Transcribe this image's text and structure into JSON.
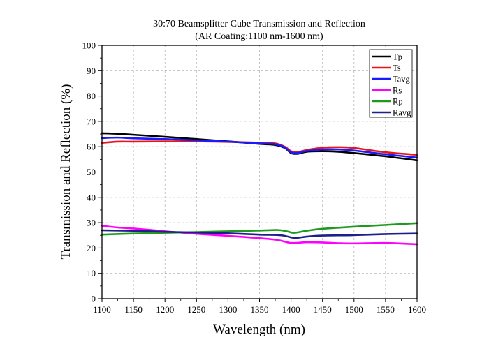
{
  "chart_data": {
    "type": "line",
    "title": "30:70 Beamsplitter Cube Transmission and Reflection",
    "subtitle": "(AR Coating:1100 nm-1600 nm)",
    "xlabel": "Wavelength (nm)",
    "ylabel": "Transmission and Reflection (%)",
    "xlim": [
      1100,
      1600
    ],
    "ylim": [
      0,
      100
    ],
    "xticks": [
      1100,
      1150,
      1200,
      1250,
      1300,
      1350,
      1400,
      1450,
      1500,
      1550,
      1600
    ],
    "yticks": [
      0,
      10,
      20,
      30,
      40,
      50,
      60,
      70,
      80,
      90,
      100
    ],
    "grid": true,
    "legend_position": "top-right",
    "series": [
      {
        "name": "Tp",
        "color": "#000000",
        "x": [
          1100,
          1125,
          1150,
          1200,
          1250,
          1300,
          1350,
          1375,
          1390,
          1400,
          1410,
          1425,
          1450,
          1475,
          1500,
          1550,
          1600
        ],
        "y": [
          65.3,
          65.1,
          64.7,
          63.9,
          63.0,
          62.1,
          61.1,
          60.7,
          59.5,
          57.5,
          57.2,
          58.0,
          58.2,
          58.0,
          57.5,
          56.2,
          54.6
        ]
      },
      {
        "name": "Ts",
        "color": "#e8161b",
        "x": [
          1100,
          1125,
          1150,
          1200,
          1250,
          1300,
          1350,
          1375,
          1390,
          1400,
          1410,
          1425,
          1450,
          1475,
          1500,
          1550,
          1600
        ],
        "y": [
          61.5,
          62.0,
          62.0,
          62.1,
          62.1,
          61.9,
          61.6,
          61.3,
          60.0,
          58.2,
          57.8,
          58.7,
          59.6,
          59.8,
          59.5,
          57.8,
          56.8
        ]
      },
      {
        "name": "Tavg",
        "color": "#1a1aff",
        "x": [
          1100,
          1125,
          1150,
          1200,
          1250,
          1300,
          1350,
          1375,
          1390,
          1400,
          1410,
          1425,
          1450,
          1475,
          1500,
          1550,
          1600
        ],
        "y": [
          63.4,
          63.6,
          63.3,
          63.0,
          62.5,
          62.0,
          61.3,
          61.0,
          59.7,
          57.8,
          57.5,
          58.3,
          58.9,
          58.9,
          58.5,
          57.0,
          55.7
        ]
      },
      {
        "name": "Rs",
        "color": "#ff00ff",
        "x": [
          1100,
          1125,
          1150,
          1175,
          1200,
          1250,
          1300,
          1350,
          1380,
          1400,
          1425,
          1450,
          1475,
          1500,
          1550,
          1600
        ],
        "y": [
          28.8,
          28.1,
          27.7,
          27.2,
          26.6,
          25.6,
          24.8,
          23.9,
          23.1,
          22.0,
          22.3,
          22.2,
          21.9,
          21.8,
          22.0,
          21.5
        ]
      },
      {
        "name": "Rp",
        "color": "#1e9a1e",
        "x": [
          1100,
          1150,
          1200,
          1250,
          1300,
          1350,
          1380,
          1395,
          1405,
          1425,
          1450,
          1500,
          1550,
          1600
        ],
        "y": [
          25.3,
          25.7,
          26.0,
          26.3,
          26.6,
          26.9,
          27.1,
          26.5,
          26.0,
          26.8,
          27.6,
          28.4,
          29.1,
          29.8
        ]
      },
      {
        "name": "Ravg",
        "color": "#1f1f8c",
        "x": [
          1100,
          1150,
          1200,
          1250,
          1300,
          1350,
          1385,
          1405,
          1425,
          1450,
          1500,
          1550,
          1600
        ],
        "y": [
          27.0,
          26.8,
          26.4,
          26.1,
          25.8,
          25.3,
          25.0,
          24.0,
          24.5,
          24.9,
          25.1,
          25.5,
          25.7
        ]
      }
    ]
  }
}
